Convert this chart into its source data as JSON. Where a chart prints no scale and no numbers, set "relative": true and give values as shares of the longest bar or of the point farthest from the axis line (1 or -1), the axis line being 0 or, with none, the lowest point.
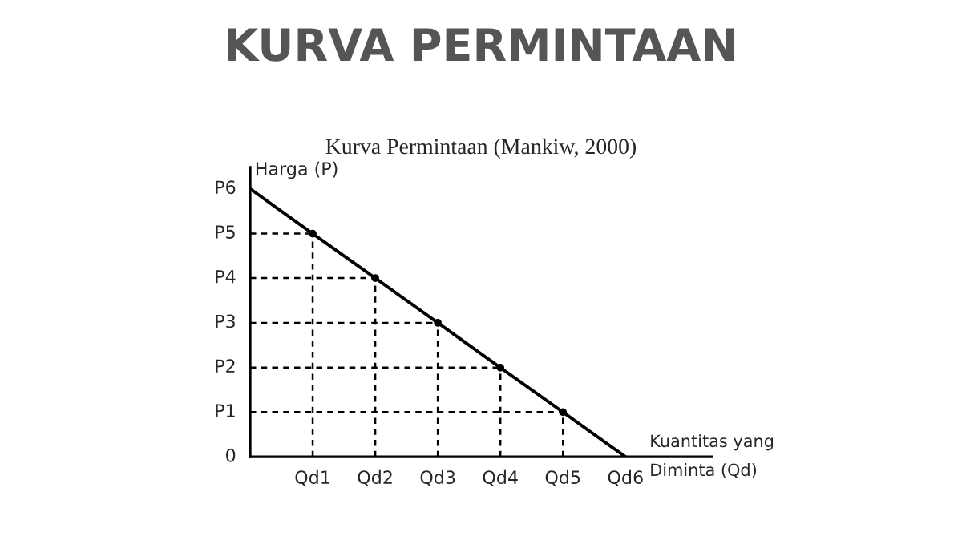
{
  "chart_data": {
    "type": "line",
    "title": "KURVA PERMINTAAN",
    "subtitle": "Kurva Permintaan (Mankiw, 2000)",
    "xlabel": "Kuantitas yang\nDiminta (Qd)",
    "ylabel": "Harga (P)",
    "relative": true,
    "categories": [
      null,
      "Qd1",
      "Qd2",
      "Qd3",
      "Qd4",
      "Qd5",
      "Qd6"
    ],
    "annotations": [
      "0",
      "P1",
      "P2",
      "P3",
      "P4",
      "P5",
      "P6"
    ],
    "grid": false,
    "series": [
      {
        "color": "#000000",
        "line_style": "solid",
        "values": [
          1,
          0.833,
          0.667,
          0.5,
          0.333,
          0.167,
          0
        ]
      },
      {
        "type": "lollipop",
        "color": "#000000",
        "line_style": "dashed",
        "marker": "circle",
        "values": [
          null,
          0.833,
          0.667,
          0.5,
          0.333,
          0.167,
          null
        ]
      },
      {
        "color": "#000000",
        "line_style": "dashed",
        "values": [
          0.833,
          0.833,
          null,
          null,
          null,
          null,
          null
        ]
      },
      {
        "color": "#000000",
        "line_style": "dashed",
        "values": [
          0.667,
          0.667,
          0.667,
          null,
          null,
          null,
          null
        ]
      },
      {
        "color": "#000000",
        "line_style": "dashed",
        "values": [
          0.5,
          0.5,
          0.5,
          0.5,
          null,
          null,
          null
        ]
      },
      {
        "color": "#000000",
        "line_style": "dashed",
        "values": [
          0.333,
          0.333,
          0.333,
          0.333,
          0.333,
          null,
          null
        ]
      },
      {
        "color": "#000000",
        "line_style": "dashed",
        "values": [
          0.167,
          0.167,
          0.167,
          0.167,
          0.167,
          0.167,
          null
        ]
      }
    ]
  }
}
